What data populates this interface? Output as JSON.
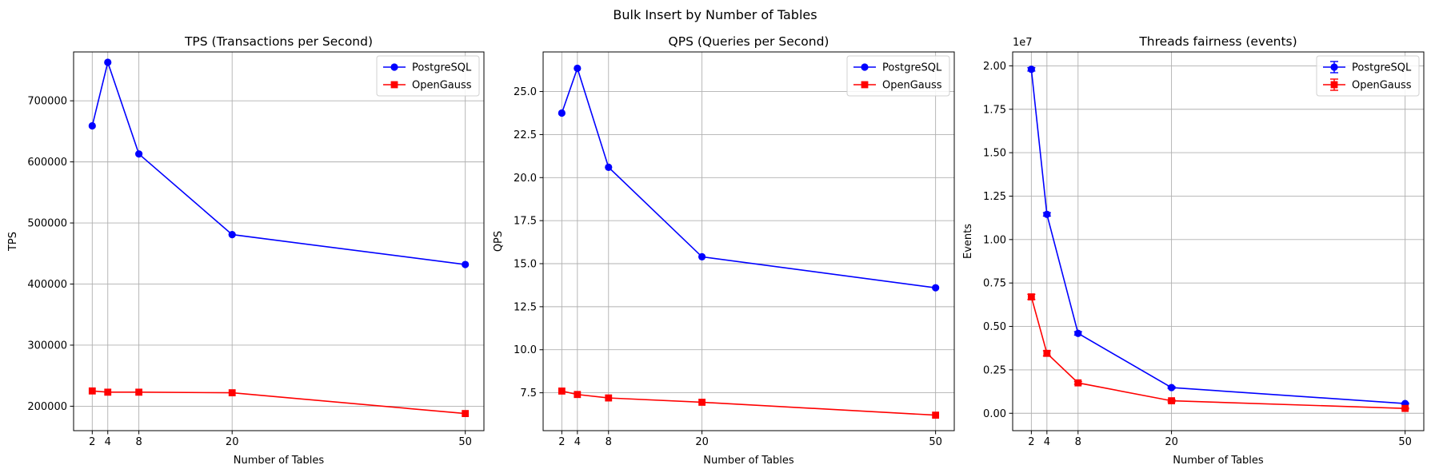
{
  "suptitle": "Bulk Insert by Number of Tables",
  "colors": {
    "PostgreSQL": "#0000ff",
    "OpenGauss": "#ff0000",
    "grid": "#b0b0b0"
  },
  "chart_data": [
    {
      "type": "line",
      "title": "TPS (Transactions per Second)",
      "xlabel": "Number of Tables",
      "ylabel": "TPS",
      "x": [
        2,
        4,
        8,
        20,
        50
      ],
      "xlim": [
        -0.4,
        52.4
      ],
      "ylim": [
        160000,
        780000
      ],
      "yticks": [
        200000,
        300000,
        400000,
        500000,
        600000,
        700000
      ],
      "ytick_labels": [
        "200000",
        "300000",
        "400000",
        "500000",
        "600000",
        "700000"
      ],
      "offset_label": "",
      "legend": "top-right",
      "grid": true,
      "series": [
        {
          "name": "PostgreSQL",
          "marker": "circle",
          "values": [
            659000,
            763000,
            613000,
            481000,
            432000
          ]
        },
        {
          "name": "OpenGauss",
          "marker": "square",
          "values": [
            225000,
            223000,
            223000,
            222000,
            188000
          ]
        }
      ]
    },
    {
      "type": "line",
      "title": "QPS (Queries per Second)",
      "xlabel": "Number of Tables",
      "ylabel": "QPS",
      "x": [
        2,
        4,
        8,
        20,
        50
      ],
      "xlim": [
        -0.4,
        52.4
      ],
      "ylim": [
        5.3,
        27.3
      ],
      "yticks": [
        7.5,
        10.0,
        12.5,
        15.0,
        17.5,
        20.0,
        22.5,
        25.0
      ],
      "ytick_labels": [
        "7.5",
        "10.0",
        "12.5",
        "15.0",
        "17.5",
        "20.0",
        "22.5",
        "25.0"
      ],
      "offset_label": "",
      "legend": "top-right",
      "grid": true,
      "series": [
        {
          "name": "PostgreSQL",
          "marker": "circle",
          "values": [
            23.75,
            26.35,
            20.6,
            15.4,
            13.6
          ]
        },
        {
          "name": "OpenGauss",
          "marker": "square",
          "values": [
            7.6,
            7.4,
            7.2,
            6.95,
            6.2
          ]
        }
      ]
    },
    {
      "type": "line",
      "title": "Threads fairness (events)",
      "xlabel": "Number of Tables",
      "ylabel": "Events",
      "x": [
        2,
        4,
        8,
        20,
        50
      ],
      "xlim": [
        -0.4,
        52.4
      ],
      "ylim": [
        -1000000,
        20800000
      ],
      "yticks": [
        0,
        2500000,
        5000000,
        7500000,
        10000000,
        12500000,
        15000000,
        17500000,
        20000000
      ],
      "ytick_labels": [
        "0.00",
        "0.25",
        "0.50",
        "0.75",
        "1.00",
        "1.25",
        "1.50",
        "1.75",
        "2.00"
      ],
      "offset_label": "1e7",
      "legend": "top-right",
      "grid": true,
      "errorbars": true,
      "series": [
        {
          "name": "PostgreSQL",
          "marker": "circle",
          "values": [
            19800000,
            11450000,
            4600000,
            1480000,
            560000
          ],
          "errors": [
            100000,
            100000,
            100000,
            50000,
            30000
          ]
        },
        {
          "name": "OpenGauss",
          "marker": "square",
          "values": [
            6700000,
            3450000,
            1750000,
            720000,
            280000
          ],
          "errors": [
            150000,
            150000,
            80000,
            60000,
            30000
          ]
        }
      ]
    }
  ]
}
